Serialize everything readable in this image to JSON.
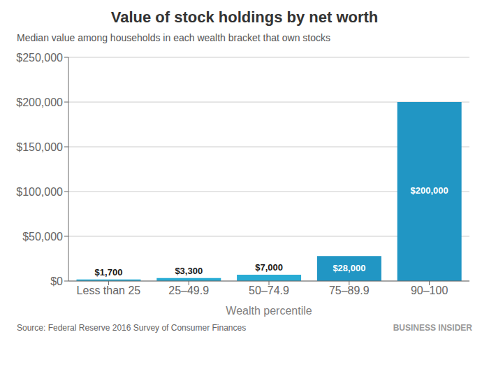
{
  "chart_data": {
    "type": "bar",
    "title": "Value of stock holdings by net worth",
    "subtitle": "Median value among households in each wealth bracket that own stocks",
    "categories": [
      "Less than 25",
      "25–49.9",
      "50–74.9",
      "75–89.9",
      "90–100"
    ],
    "values": [
      1700,
      3300,
      7000,
      28000,
      200000
    ],
    "value_labels": [
      "$1,700",
      "$3,300",
      "$7,000",
      "$28,000",
      "$200,000"
    ],
    "colors": [
      "#29acd4",
      "#29acd4",
      "#29acd4",
      "#2196c4",
      "#2196c4"
    ],
    "x_label": "Wealth percentile",
    "ylim": [
      0,
      250000
    ],
    "yticks": [
      {
        "value": 0,
        "label": "$0"
      },
      {
        "value": 50000,
        "label": "$50,000"
      },
      {
        "value": 100000,
        "label": "$100,000"
      },
      {
        "value": 150000,
        "label": "$150,000"
      },
      {
        "value": 200000,
        "label": "$200,000"
      },
      {
        "value": 250000,
        "label": "$250,000"
      }
    ],
    "grid": true,
    "data_labels": true,
    "annotations": [
      "Source: Federal Reserve 2016 Survey of Consumer Finances",
      "BUSINESS INSIDER"
    ]
  }
}
